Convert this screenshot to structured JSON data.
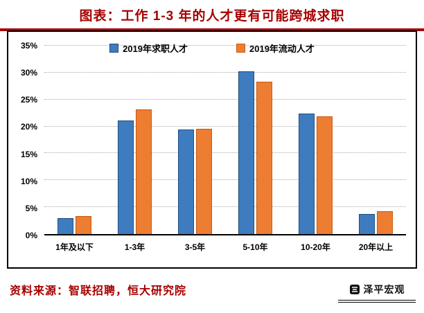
{
  "title": "图表：工作 1-3 年的人才更有可能跨城求职",
  "colors": {
    "title_red": "#A60000",
    "series1_fill": "#3E7CBF",
    "series1_edge": "#1F4E79",
    "series2_fill": "#ED7D31",
    "series2_edge": "#C55A11",
    "grid": "#A9A9A9"
  },
  "chart_data": {
    "type": "bar",
    "categories": [
      "1年及以下",
      "1-3年",
      "3-5年",
      "5-10年",
      "10-20年",
      "20年以上"
    ],
    "series": [
      {
        "name": "2019年求职人才",
        "fill": "#3E7CBF",
        "edge": "#1F4E79",
        "values": [
          3.0,
          21.1,
          19.4,
          30.3,
          22.4,
          3.7
        ]
      },
      {
        "name": "2019年流动人才",
        "fill": "#ED7D31",
        "edge": "#C55A11",
        "values": [
          3.4,
          23.1,
          19.5,
          28.3,
          21.9,
          4.2
        ]
      }
    ],
    "ylim": [
      0,
      35
    ],
    "ytick_step": 5,
    "ytick_labels": [
      "0%",
      "5%",
      "10%",
      "15%",
      "20%",
      "25%",
      "30%",
      "35%"
    ],
    "grid": true,
    "legend_position": "top"
  },
  "footer": {
    "source": "资料来源：智联招聘，恒大研究院",
    "brand": "泽平宏观"
  }
}
